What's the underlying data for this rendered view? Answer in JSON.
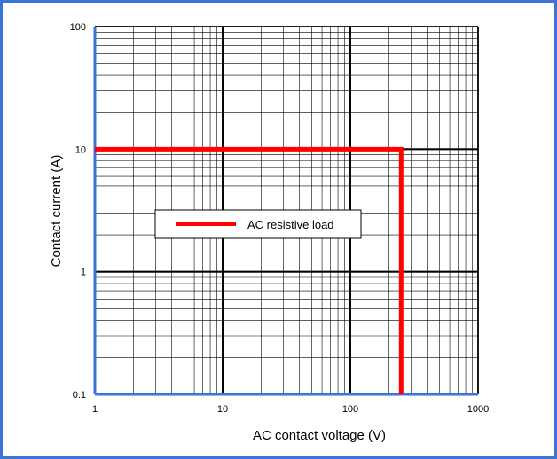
{
  "chart_data": {
    "type": "line",
    "xscale": "log",
    "yscale": "log",
    "xlim": [
      1,
      1000
    ],
    "ylim": [
      0.1,
      100
    ],
    "xlabel": "AC contact voltage (V)",
    "ylabel": "Contact current (A)",
    "x_ticks": [
      {
        "value": 1,
        "label": "1"
      },
      {
        "value": 10,
        "label": "10"
      },
      {
        "value": 100,
        "label": "100"
      },
      {
        "value": 1000,
        "label": "1000"
      }
    ],
    "y_ticks": [
      {
        "value": 0.1,
        "label": "0.1"
      },
      {
        "value": 1,
        "label": "1"
      },
      {
        "value": 10,
        "label": "10"
      },
      {
        "value": 100,
        "label": "100"
      }
    ],
    "grid": true,
    "legend_position": "center-left",
    "series": [
      {
        "name": "AC resistive load",
        "color": "#ff0000",
        "points": [
          {
            "x": 1,
            "y": 10
          },
          {
            "x": 250,
            "y": 10
          },
          {
            "x": 250,
            "y": 0.1
          }
        ]
      }
    ]
  },
  "colors": {
    "frame": "#3b74d8",
    "axis": "#3b74d8",
    "grid": "#000000"
  }
}
